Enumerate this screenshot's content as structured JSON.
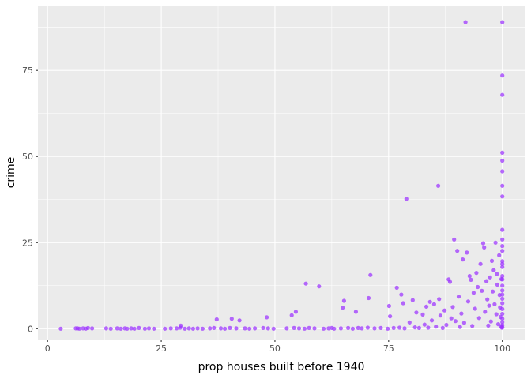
{
  "chart_data": {
    "type": "scatter",
    "title": "",
    "xlabel": "prop houses built before 1940",
    "ylabel": "crime",
    "xlim": [
      0,
      100
    ],
    "ylim": [
      0,
      89
    ],
    "x_ticks": [
      "0",
      "25",
      "50",
      "75",
      "100"
    ],
    "y_ticks": [
      "0",
      "25",
      "50",
      "75"
    ],
    "grid": true,
    "legend": "none",
    "point_color": "#9b30ff",
    "panel_background": "#ebebeb",
    "grid_color": "#ffffff",
    "points": [
      [
        2.9,
        0.0
      ],
      [
        6.2,
        0.1
      ],
      [
        6.6,
        0.1
      ],
      [
        7.0,
        0.0
      ],
      [
        7.8,
        0.1
      ],
      [
        8.4,
        0.0
      ],
      [
        8.9,
        0.2
      ],
      [
        9.8,
        0.1
      ],
      [
        12.9,
        0.1
      ],
      [
        13.9,
        0.0
      ],
      [
        15.3,
        0.1
      ],
      [
        16.1,
        0.0
      ],
      [
        17.0,
        0.1
      ],
      [
        17.5,
        0.0
      ],
      [
        18.4,
        0.1
      ],
      [
        19.1,
        0.0
      ],
      [
        20.1,
        0.2
      ],
      [
        21.4,
        0.0
      ],
      [
        22.3,
        0.1
      ],
      [
        23.4,
        0.0
      ],
      [
        25.8,
        0.0
      ],
      [
        27.1,
        0.1
      ],
      [
        28.4,
        0.1
      ],
      [
        29.2,
        0.3
      ],
      [
        29.3,
        0.9
      ],
      [
        30.2,
        0.0
      ],
      [
        31.1,
        0.1
      ],
      [
        32.0,
        0.0
      ],
      [
        33.0,
        0.1
      ],
      [
        34.1,
        0.0
      ],
      [
        35.7,
        0.1
      ],
      [
        36.6,
        0.2
      ],
      [
        37.2,
        2.7
      ],
      [
        38.1,
        0.1
      ],
      [
        39.0,
        0.0
      ],
      [
        40.1,
        0.2
      ],
      [
        40.5,
        2.9
      ],
      [
        41.5,
        0.1
      ],
      [
        42.2,
        2.4
      ],
      [
        43.4,
        0.1
      ],
      [
        44.4,
        0.0
      ],
      [
        45.6,
        0.1
      ],
      [
        47.4,
        0.2
      ],
      [
        48.2,
        3.3
      ],
      [
        48.5,
        0.1
      ],
      [
        49.7,
        0.0
      ],
      [
        52.6,
        0.1
      ],
      [
        53.7,
        3.9
      ],
      [
        54.2,
        0.2
      ],
      [
        54.6,
        4.9
      ],
      [
        55.3,
        0.1
      ],
      [
        56.5,
        0.0
      ],
      [
        56.8,
        13.1
      ],
      [
        57.5,
        0.2
      ],
      [
        58.7,
        0.1
      ],
      [
        59.7,
        12.3
      ],
      [
        60.7,
        0.0
      ],
      [
        61.8,
        0.1
      ],
      [
        62.5,
        0.2
      ],
      [
        63.0,
        0.0
      ],
      [
        64.5,
        0.1
      ],
      [
        64.9,
        6.1
      ],
      [
        65.2,
        8.1
      ],
      [
        66.1,
        0.2
      ],
      [
        67.1,
        0.0
      ],
      [
        67.8,
        4.9
      ],
      [
        68.3,
        0.2
      ],
      [
        69.1,
        0.1
      ],
      [
        70.4,
        0.3
      ],
      [
        70.6,
        8.9
      ],
      [
        71.0,
        15.6
      ],
      [
        71.9,
        0.1
      ],
      [
        73.3,
        0.2
      ],
      [
        74.8,
        0.0
      ],
      [
        75.1,
        6.6
      ],
      [
        75.3,
        3.6
      ],
      [
        76.1,
        0.2
      ],
      [
        76.8,
        11.9
      ],
      [
        77.4,
        0.3
      ],
      [
        77.8,
        9.9
      ],
      [
        78.2,
        7.4
      ],
      [
        78.5,
        0.1
      ],
      [
        78.9,
        37.7
      ],
      [
        79.6,
        1.8
      ],
      [
        80.3,
        8.3
      ],
      [
        80.8,
        0.4
      ],
      [
        81.1,
        4.7
      ],
      [
        81.7,
        0.2
      ],
      [
        82.5,
        4.1
      ],
      [
        82.9,
        1.2
      ],
      [
        83.3,
        6.4
      ],
      [
        83.7,
        0.3
      ],
      [
        84.1,
        7.8
      ],
      [
        84.5,
        2.4
      ],
      [
        85.0,
        7.1
      ],
      [
        85.4,
        0.6
      ],
      [
        85.9,
        41.5
      ],
      [
        86.1,
        8.6
      ],
      [
        86.4,
        3.8
      ],
      [
        86.9,
        0.2
      ],
      [
        87.3,
        5.3
      ],
      [
        87.7,
        1.1
      ],
      [
        88.2,
        14.3
      ],
      [
        88.5,
        13.6
      ],
      [
        88.8,
        3.0
      ],
      [
        89.1,
        6.3
      ],
      [
        89.4,
        25.9
      ],
      [
        89.7,
        2.2
      ],
      [
        90.1,
        22.6
      ],
      [
        90.4,
        9.3
      ],
      [
        90.7,
        0.5
      ],
      [
        91.0,
        4.4
      ],
      [
        91.3,
        20.1
      ],
      [
        91.6,
        1.7
      ],
      [
        91.9,
        89.0
      ],
      [
        92.2,
        22.1
      ],
      [
        92.5,
        7.9
      ],
      [
        92.8,
        15.3
      ],
      [
        93.1,
        14.2
      ],
      [
        93.4,
        0.8
      ],
      [
        93.7,
        10.4
      ],
      [
        94.0,
        5.8
      ],
      [
        94.3,
        16.2
      ],
      [
        94.6,
        12.1
      ],
      [
        94.9,
        3.1
      ],
      [
        95.2,
        18.8
      ],
      [
        95.5,
        11.0
      ],
      [
        95.8,
        24.8
      ],
      [
        96.0,
        23.6
      ],
      [
        96.2,
        4.9
      ],
      [
        96.5,
        13.8
      ],
      [
        96.7,
        8.5
      ],
      [
        96.9,
        0.9
      ],
      [
        97.1,
        6.7
      ],
      [
        97.3,
        14.9
      ],
      [
        97.5,
        2.1
      ],
      [
        97.7,
        19.7
      ],
      [
        97.9,
        10.8
      ],
      [
        98.1,
        17.0
      ],
      [
        98.3,
        7.1
      ],
      [
        98.5,
        25.0
      ],
      [
        98.7,
        4.2
      ],
      [
        98.8,
        15.9
      ],
      [
        98.9,
        12.8
      ],
      [
        99.1,
        1.3
      ],
      [
        99.3,
        21.3
      ],
      [
        99.4,
        9.8
      ],
      [
        99.5,
        6.2
      ],
      [
        99.6,
        3.4
      ],
      [
        99.7,
        0.7
      ],
      [
        99.8,
        14.4
      ],
      [
        99.9,
        0.3
      ],
      [
        100.0,
        89.0
      ],
      [
        100.0,
        73.5
      ],
      [
        100.0,
        67.9
      ],
      [
        100.0,
        51.1
      ],
      [
        100.0,
        48.8
      ],
      [
        100.0,
        45.7
      ],
      [
        100.0,
        41.5
      ],
      [
        100.0,
        38.4
      ],
      [
        100.0,
        28.7
      ],
      [
        100.0,
        25.9
      ],
      [
        100.0,
        24.0
      ],
      [
        100.0,
        22.6
      ],
      [
        100.0,
        19.6
      ],
      [
        100.0,
        18.8
      ],
      [
        100.0,
        17.9
      ],
      [
        100.0,
        15.3
      ],
      [
        100.0,
        14.3
      ],
      [
        100.0,
        12.5
      ],
      [
        100.0,
        11.1
      ],
      [
        100.0,
        9.9
      ],
      [
        100.0,
        8.7
      ],
      [
        100.0,
        7.4
      ],
      [
        100.0,
        5.7
      ],
      [
        100.0,
        4.3
      ],
      [
        100.0,
        2.9
      ],
      [
        100.0,
        1.9
      ],
      [
        100.0,
        1.0
      ],
      [
        100.0,
        0.4
      ]
    ]
  }
}
